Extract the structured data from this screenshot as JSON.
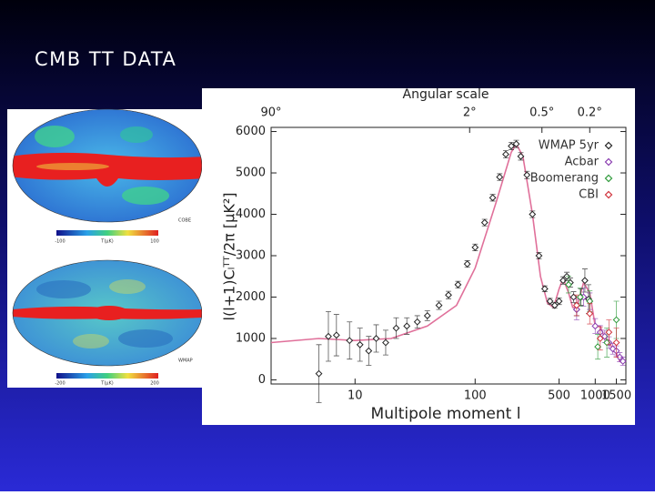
{
  "slide_title": "CMB TT DATA",
  "maps": [
    {
      "label": "COBE",
      "scale_min": "-100",
      "scale_unit": "T(μK)",
      "scale_max": "100"
    },
    {
      "label": "WMAP",
      "scale_min": "-200",
      "scale_unit": "T(μK)",
      "scale_max": "200"
    }
  ],
  "chart_data": {
    "type": "scatter",
    "top_axis_title": "Angular scale",
    "xlabel": "Multipole moment  l",
    "ylabel": "l(l+1)Cₗᵀᵀ/2π [μK²]",
    "xscale": "log",
    "xlim": [
      2,
      1800
    ],
    "ylim": [
      -100,
      6100
    ],
    "xticks": [
      10,
      100,
      500,
      1000,
      1500
    ],
    "yticks": [
      0,
      1000,
      2000,
      3000,
      4000,
      5000,
      6000
    ],
    "x2ticks": [
      {
        "value": 2,
        "label": "90°"
      },
      {
        "value": 90,
        "label": "2°"
      },
      {
        "value": 360,
        "label": "0.5°"
      },
      {
        "value": 900,
        "label": "0.2°"
      }
    ],
    "legend": "top-right",
    "model": {
      "color": "#e0709a",
      "x": [
        2,
        5,
        10,
        20,
        40,
        70,
        100,
        150,
        200,
        220,
        250,
        300,
        350,
        400,
        450,
        500,
        540,
        600,
        650,
        700,
        800,
        900,
        1000,
        1100,
        1200,
        1300,
        1400,
        1500,
        1600,
        1700
      ],
      "values": [
        900,
        1000,
        950,
        1000,
        1300,
        1800,
        2700,
        4300,
        5500,
        5700,
        5400,
        4000,
        2500,
        1850,
        1750,
        2200,
        2450,
        2100,
        1750,
        1750,
        2350,
        2100,
        1300,
        1300,
        1000,
        950,
        700,
        650,
        450,
        400
      ]
    },
    "series": [
      {
        "name": "WMAP 5yr",
        "color": "#222222",
        "x": [
          5,
          6,
          7,
          9,
          11,
          13,
          15,
          18,
          22,
          27,
          33,
          40,
          50,
          60,
          72,
          86,
          100,
          120,
          140,
          160,
          180,
          200,
          220,
          240,
          270,
          300,
          340,
          380,
          420,
          460,
          500,
          540,
          580,
          620,
          660,
          700,
          760,
          820,
          880
        ],
        "values": [
          150,
          1050,
          1080,
          950,
          850,
          700,
          1000,
          900,
          1250,
          1300,
          1400,
          1550,
          1800,
          2050,
          2300,
          2800,
          3200,
          3800,
          4400,
          4900,
          5450,
          5650,
          5700,
          5400,
          4950,
          4000,
          3000,
          2200,
          1900,
          1800,
          1900,
          2400,
          2500,
          2350,
          2000,
          1700,
          2000,
          2400,
          1950
        ],
        "errors": [
          700,
          600,
          500,
          450,
          400,
          350,
          330,
          300,
          250,
          200,
          150,
          120,
          100,
          90,
          80,
          80,
          80,
          80,
          80,
          80,
          90,
          90,
          90,
          90,
          90,
          80,
          80,
          70,
          70,
          70,
          80,
          90,
          100,
          110,
          130,
          150,
          200,
          280,
          350
        ]
      },
      {
        "name": "Acbar",
        "color": "#8a3cb0",
        "x": [
          700,
          800,
          900,
          1000,
          1100,
          1200,
          1300,
          1400,
          1500,
          1600,
          1700
        ],
        "values": [
          1700,
          2000,
          1900,
          1300,
          1150,
          1050,
          900,
          750,
          700,
          550,
          450
        ],
        "errors": [
          250,
          220,
          200,
          180,
          160,
          150,
          140,
          130,
          120,
          110,
          100
        ]
      },
      {
        "name": "Boomerang",
        "color": "#2e9a3a",
        "x": [
          600,
          750,
          900,
          1050,
          1250,
          1500
        ],
        "values": [
          2300,
          2000,
          1900,
          800,
          900,
          1450
        ],
        "errors": [
          200,
          220,
          250,
          300,
          350,
          450
        ]
      },
      {
        "name": "CBI",
        "color": "#d0303a",
        "x": [
          700,
          900,
          1100,
          1300,
          1500
        ],
        "values": [
          1800,
          1600,
          1000,
          1150,
          900
        ],
        "errors": [
          250,
          250,
          280,
          300,
          350
        ]
      }
    ]
  }
}
